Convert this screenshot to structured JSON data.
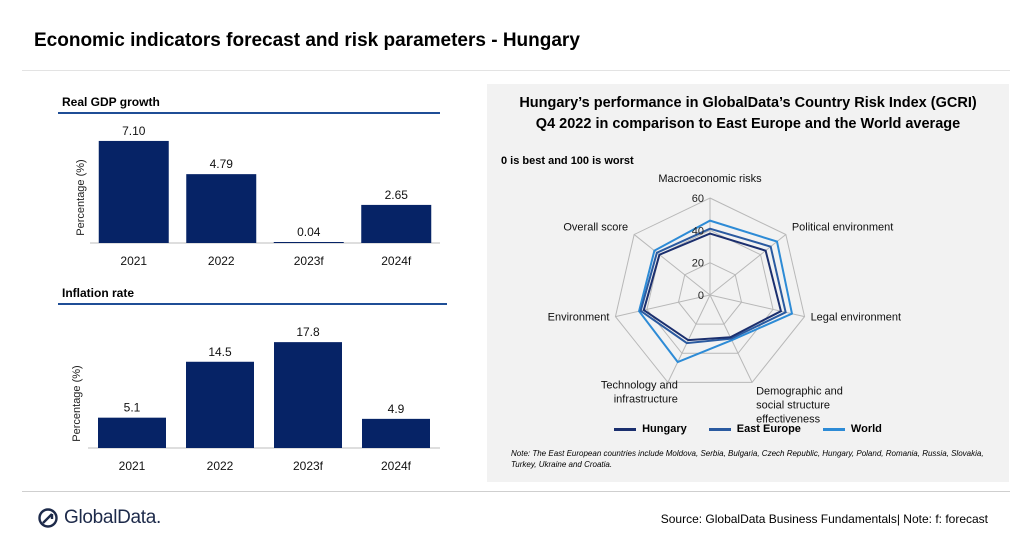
{
  "page": {
    "title": "Economic indicators forecast and risk parameters - Hungary",
    "footer_source": "Source: GlobalData Business Fundamentals| Note: f: forecast",
    "logo_text": "GlobalData."
  },
  "colors": {
    "bar": "#062366",
    "hungary": "#1b2f6e",
    "east_europe": "#2a5aa0",
    "world": "#2d8bd6",
    "grid": "#b8b8b8",
    "rule": "#1f4e96"
  },
  "chart_data": [
    {
      "type": "bar",
      "title": "Real GDP growth",
      "ylabel": "Percentage (%)",
      "xlabel": "",
      "categories": [
        "2021",
        "2022",
        "2023f",
        "2024f"
      ],
      "values": [
        7.1,
        4.79,
        0.04,
        2.65
      ],
      "value_labels": [
        "7.10",
        "4.79",
        "0.04",
        "2.65"
      ],
      "ylim": [
        0,
        8
      ],
      "grid": false
    },
    {
      "type": "bar",
      "title": "Inflation rate",
      "ylabel": "Percentage (%)",
      "xlabel": "",
      "categories": [
        "2021",
        "2022",
        "2023f",
        "2024f"
      ],
      "values": [
        5.1,
        14.5,
        17.8,
        4.9
      ],
      "value_labels": [
        "5.1",
        "14.5",
        "17.8",
        "4.9"
      ],
      "ylim": [
        0,
        19
      ],
      "grid": false
    },
    {
      "type": "radar",
      "title_lines": [
        "Hungary’s performance in GlobalData’s Country Risk Index (GCRI)",
        "Q4 2022 in comparison to East Europe and the World average"
      ],
      "subtitle": "0 is best and 100  is worst",
      "axes": [
        "Macroeconomic risks",
        "Political environment",
        "Legal environment",
        "Demographic and social structure effectiveness",
        "Technology and infrastructure",
        "Environment",
        "Overall score"
      ],
      "axis_label_lines": [
        [
          "Macroeconomic risks"
        ],
        [
          "Political environment"
        ],
        [
          "Legal environment"
        ],
        [
          "Demographic and",
          "social structure",
          "effectiveness"
        ],
        [
          "Technology and",
          "infrastructure"
        ],
        [
          "Environment"
        ],
        [
          "Overall score"
        ]
      ],
      "ticks": [
        0,
        20,
        40,
        60
      ],
      "tick_labels": [
        "0",
        "20",
        "40",
        "60"
      ],
      "rlim": [
        0,
        60
      ],
      "series": [
        {
          "name": "Hungary",
          "values": [
            38,
            44,
            45,
            29,
            31,
            42,
            40
          ]
        },
        {
          "name": "East Europe",
          "values": [
            41,
            48,
            48,
            30,
            33,
            44,
            42
          ]
        },
        {
          "name": "World",
          "values": [
            46,
            53,
            52,
            31,
            46,
            45,
            44
          ]
        }
      ],
      "legend_position": "bottom",
      "note": "Note: The East European countries include Moldova,  Serbia,  Bulgaria, Czech Republic, Hungary, Poland, Romania, Russia, Slovakia,  Turkey,  Ukraine and Croatia."
    }
  ]
}
